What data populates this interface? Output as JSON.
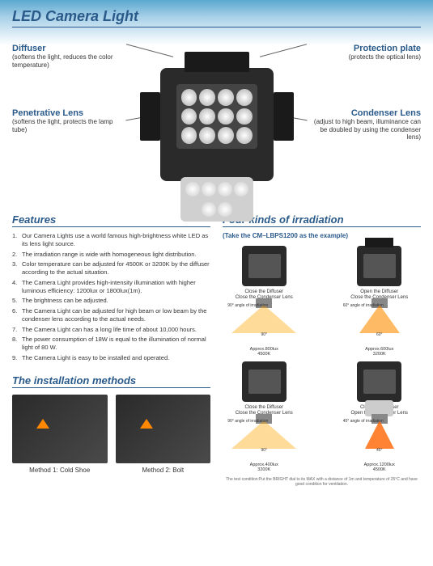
{
  "title": "LED Camera Light",
  "callouts": {
    "diffuser": {
      "label": "Diffuser",
      "desc": "(softens the light, reduces the color temperature)"
    },
    "protection": {
      "label": "Protection plate",
      "desc": "(protects the optical lens)"
    },
    "penetrative": {
      "label": "Penetrative Lens",
      "desc": "(softens the light, protects the lamp tube)"
    },
    "condenser": {
      "label": "Condenser Lens",
      "desc": "(adjust to high beam, illuminance can be doubled by using the condenser lens)"
    }
  },
  "features": {
    "title": "Features",
    "items": [
      "Our Camera Lights use a world famous high-brightness white LED as its lens light source.",
      "The irradiation range is wide with homogeneous light distribution.",
      "Color temperature can be adjusted for 4500K or 3200K by the diffuser according to the actual situation.",
      "The Camera Light provides high-intensity illumination with higher luminous efficiency: 1200lux or 1800lux(1m).",
      "The brightness can be adjusted.",
      "The Camera Light can be adjusted for high beam or low beam by the condenser lens according to the actual needs.",
      "The Camera Light can has a long life time of about 10,000 hours.",
      "The power consumption of 18W is equal to the illumination of normal light of 80 W.",
      "The Camera Light is easy to be installed and operated."
    ]
  },
  "irradiation": {
    "title": "Four kinds of irradiation",
    "subtitle": "(Take the CM–LBPS1200 as the example)",
    "modes": [
      {
        "diff": "Close the Diffuser",
        "cond": "Close the Condenser Lens",
        "angle": "90° angle of irradiation",
        "angle_val": "90°",
        "lux": "Approx.800lux",
        "temp": "4500K"
      },
      {
        "diff": "Open the Diffuser",
        "cond": "Close the Condenser Lens",
        "angle": "60° angle of irradiation",
        "angle_val": "60°",
        "lux": "Approx.600lux",
        "temp": "3200K"
      },
      {
        "diff": "Close the Diffuser",
        "cond": "Close the Condenser Lens",
        "angle": "90° angle of irradiation",
        "angle_val": "90°",
        "lux": "Approx.400lux",
        "temp": "3200K"
      },
      {
        "diff": "Close the Diffuser",
        "cond": "Open the Condenser Lens",
        "angle": "45° angle of irradiation",
        "angle_val": "45°",
        "lux": "Approx.1200lux",
        "temp": "4500K"
      }
    ]
  },
  "installation": {
    "title": "The installation methods",
    "methods": [
      {
        "label": "Method 1: Cold Shoe"
      },
      {
        "label": "Method 2: Bolt"
      }
    ]
  },
  "footnote": "The test condition:Put the BRIGHT dial to its MAX with a distance of 1m and temperature of 25°C and have good condition for ventilation."
}
